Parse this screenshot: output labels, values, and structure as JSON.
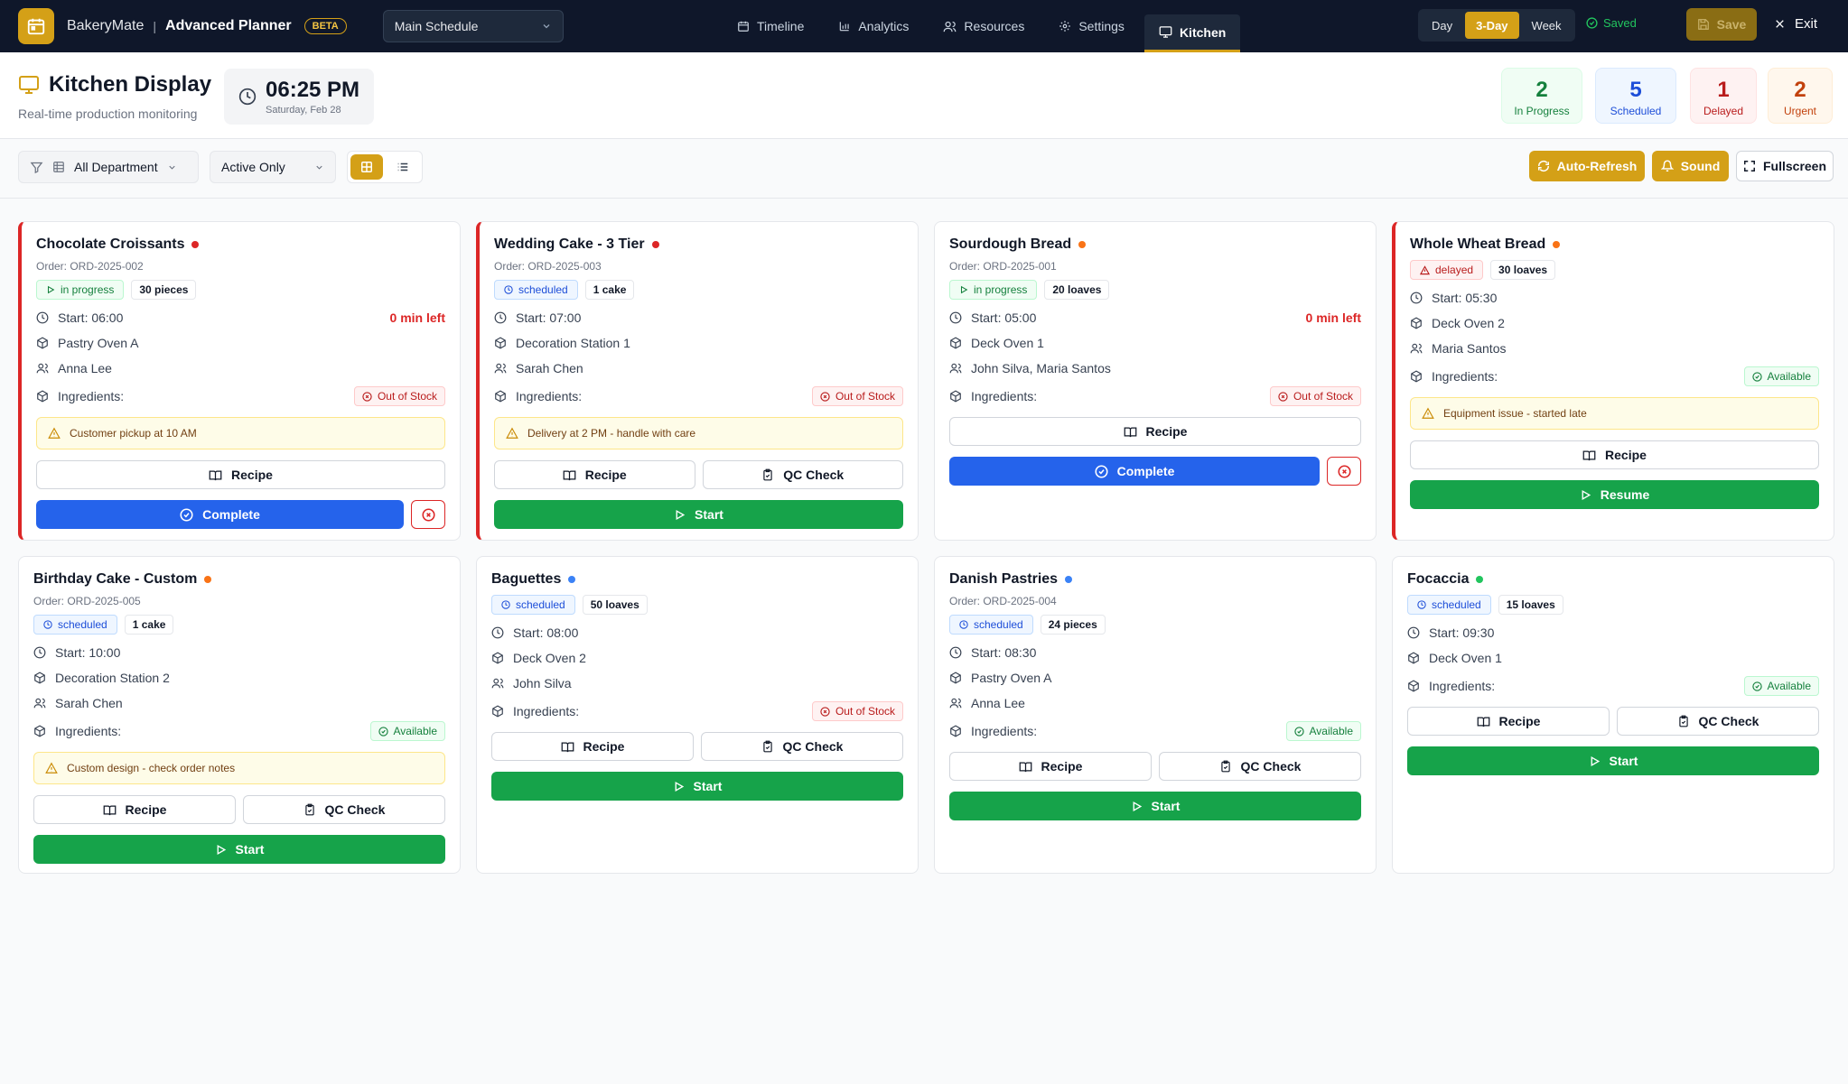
{
  "app": {
    "brand": "BakeryMate",
    "title": "Advanced Planner",
    "beta": "BETA",
    "schedule": "Main Schedule"
  },
  "nav": {
    "timeline": "Timeline",
    "analytics": "Analytics",
    "resources": "Resources",
    "settings": "Settings",
    "kitchen": "Kitchen"
  },
  "view": {
    "day": "Day",
    "three_day": "3-Day",
    "week": "Week"
  },
  "status": {
    "saved": "Saved",
    "save": "Save",
    "exit": "Exit"
  },
  "header": {
    "title": "Kitchen Display",
    "subtitle": "Real-time production monitoring",
    "time": "06:25 PM",
    "date": "Saturday, Feb 28"
  },
  "stats": {
    "in_progress": {
      "value": "2",
      "label": "In Progress"
    },
    "scheduled": {
      "value": "5",
      "label": "Scheduled"
    },
    "delayed": {
      "value": "1",
      "label": "Delayed"
    },
    "urgent": {
      "value": "2",
      "label": "Urgent"
    }
  },
  "filters": {
    "department": "All Department",
    "status": "Active Only",
    "auto_refresh": "Auto-Refresh",
    "sound": "Sound",
    "fullscreen": "Fullscreen"
  },
  "labels": {
    "recipe": "Recipe",
    "qc_check": "QC Check",
    "complete": "Complete",
    "start": "Start",
    "resume": "Resume",
    "ingredients": "Ingredients:"
  },
  "cards": [
    {
      "title": "Chocolate Croissants",
      "order": "Order: ORD-2025-002",
      "status": "in progress",
      "qty": "30 pieces",
      "start": "Start: 06:00",
      "min_left": "0 min left",
      "station": "Pastry Oven A",
      "staff": "Anna Lee",
      "stock": "Out of Stock",
      "note": "Customer pickup at 10 AM"
    },
    {
      "title": "Wedding Cake - 3 Tier",
      "order": "Order: ORD-2025-003",
      "status": "scheduled",
      "qty": "1 cake",
      "start": "Start: 07:00",
      "station": "Decoration Station 1",
      "staff": "Sarah Chen",
      "stock": "Out of Stock",
      "note": "Delivery at 2 PM - handle with care"
    },
    {
      "title": "Sourdough Bread",
      "order": "Order: ORD-2025-001",
      "status": "in progress",
      "qty": "20 loaves",
      "start": "Start: 05:00",
      "min_left": "0 min left",
      "station": "Deck Oven 1",
      "staff": "John Silva, Maria Santos",
      "stock": "Out of Stock"
    },
    {
      "title": "Whole Wheat Bread",
      "status": "delayed",
      "qty": "30 loaves",
      "start": "Start: 05:30",
      "station": "Deck Oven 2",
      "staff": "Maria Santos",
      "stock": "Available",
      "note": "Equipment issue - started late"
    },
    {
      "title": "Birthday Cake - Custom",
      "order": "Order: ORD-2025-005",
      "status": "scheduled",
      "qty": "1 cake",
      "start": "Start: 10:00",
      "station": "Decoration Station 2",
      "staff": "Sarah Chen",
      "stock": "Available",
      "note": "Custom design - check order notes"
    },
    {
      "title": "Baguettes",
      "status": "scheduled",
      "qty": "50 loaves",
      "start": "Start: 08:00",
      "station": "Deck Oven 2",
      "staff": "John Silva",
      "stock": "Out of Stock"
    },
    {
      "title": "Danish Pastries",
      "order": "Order: ORD-2025-004",
      "status": "scheduled",
      "qty": "24 pieces",
      "start": "Start: 08:30",
      "station": "Pastry Oven A",
      "staff": "Anna Lee",
      "stock": "Available"
    },
    {
      "title": "Focaccia",
      "status": "scheduled",
      "qty": "15 loaves",
      "start": "Start: 09:30",
      "station": "Deck Oven 1",
      "stock": "Available"
    }
  ],
  "colors": {
    "nav_bg": "#0f172a",
    "accent": "#d4a017",
    "urgent": "#dc2626",
    "priority_high": "#f97316",
    "priority_normal": "#3b82f6",
    "priority_low": "#22c55e",
    "complete": "#2563eb",
    "start": "#16a34a"
  }
}
